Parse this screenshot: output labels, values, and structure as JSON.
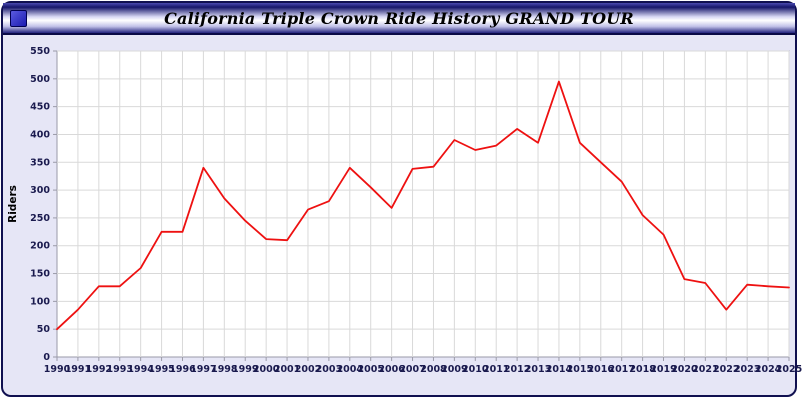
{
  "window": {
    "title": "California Triple Crown Ride History GRAND TOUR"
  },
  "colors": {
    "line": "#ee1111",
    "page_background": "#e6e6f6",
    "plot_background": "#ffffff",
    "grid": "#d9d9d9",
    "plot_border": "#9a9aa8",
    "tick_text": "#1a1a4e",
    "titlebar_dark": "#16166a"
  },
  "chart_data": {
    "type": "line",
    "title": "California Triple Crown Ride History GRAND TOUR",
    "xlabel": "",
    "ylabel": "Riders",
    "ylim": [
      0,
      550
    ],
    "ytick_step": 50,
    "yticks": [
      0,
      50,
      100,
      150,
      200,
      250,
      300,
      350,
      400,
      450,
      500,
      550
    ],
    "grid": true,
    "legend": "none",
    "x": [
      1990,
      1991,
      1992,
      1993,
      1994,
      1995,
      1996,
      1997,
      1998,
      1999,
      2000,
      2001,
      2002,
      2003,
      2004,
      2005,
      2006,
      2007,
      2008,
      2009,
      2010,
      2011,
      2012,
      2013,
      2014,
      2015,
      2016,
      2017,
      2018,
      2019,
      2020,
      2021,
      2022,
      2023,
      2024,
      2025
    ],
    "series": [
      {
        "name": "Riders",
        "color": "#ee1111",
        "values": [
          50,
          85,
          127,
          127,
          160,
          225,
          225,
          340,
          285,
          245,
          212,
          210,
          265,
          280,
          340,
          305,
          268,
          338,
          342,
          390,
          372,
          380,
          410,
          385,
          495,
          385,
          350,
          315,
          255,
          220,
          140,
          133,
          85,
          130,
          127,
          125
        ]
      }
    ]
  }
}
